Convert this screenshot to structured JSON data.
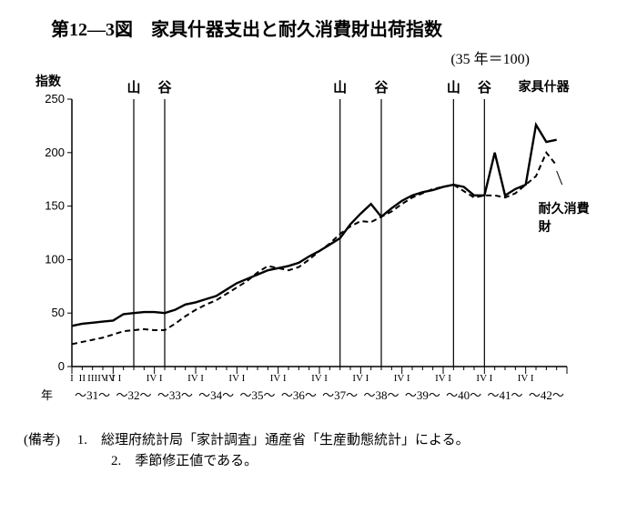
{
  "title": "第12—3図　家具什器支出と耐久消費財出荷指数",
  "subtitle": "(35 年＝100)",
  "y_axis_title": "指数",
  "year_label_prefix": "年",
  "chart": {
    "type": "line",
    "background_color": "#ffffff",
    "stroke_color": "#000000",
    "ylim": [
      0,
      250
    ],
    "ytick_step": 50,
    "yticks": [
      0,
      50,
      100,
      150,
      200,
      250
    ],
    "xlim_quarters": [
      0,
      48
    ],
    "years": [
      "31",
      "32",
      "33",
      "34",
      "35",
      "36",
      "37",
      "38",
      "39",
      "40",
      "41",
      "42"
    ],
    "quarter_ticks_first_year": [
      "I",
      "II",
      "III",
      "IV",
      "I"
    ],
    "quarter_tick_label": "IV I",
    "peak_label": "山",
    "trough_label": "谷",
    "vertical_lines_q": [
      6,
      9,
      26,
      30,
      37,
      40
    ],
    "vertical_line_labels": [
      "山",
      "谷",
      "山",
      "谷",
      "山",
      "谷"
    ],
    "series": [
      {
        "name": "家具什器",
        "label": "家具什器",
        "color": "#000000",
        "line_width": 2.4,
        "dash": "none",
        "data": [
          [
            0,
            38
          ],
          [
            1,
            40
          ],
          [
            2,
            41
          ],
          [
            3,
            42
          ],
          [
            4,
            43
          ],
          [
            5,
            49
          ],
          [
            6,
            50
          ],
          [
            7,
            51
          ],
          [
            8,
            51
          ],
          [
            9,
            50
          ],
          [
            10,
            53
          ],
          [
            11,
            58
          ],
          [
            12,
            60
          ],
          [
            13,
            63
          ],
          [
            14,
            66
          ],
          [
            15,
            72
          ],
          [
            16,
            78
          ],
          [
            17,
            82
          ],
          [
            18,
            86
          ],
          [
            19,
            90
          ],
          [
            20,
            92
          ],
          [
            21,
            94
          ],
          [
            22,
            97
          ],
          [
            23,
            103
          ],
          [
            24,
            108
          ],
          [
            25,
            114
          ],
          [
            26,
            120
          ],
          [
            27,
            133
          ],
          [
            28,
            143
          ],
          [
            29,
            152
          ],
          [
            30,
            140
          ],
          [
            31,
            148
          ],
          [
            32,
            155
          ],
          [
            33,
            160
          ],
          [
            34,
            163
          ],
          [
            35,
            165
          ],
          [
            36,
            168
          ],
          [
            37,
            170
          ],
          [
            38,
            168
          ],
          [
            39,
            160
          ],
          [
            40,
            160
          ],
          [
            41,
            200
          ],
          [
            42,
            160
          ],
          [
            43,
            166
          ],
          [
            44,
            170
          ],
          [
            45,
            226
          ],
          [
            46,
            210
          ],
          [
            47,
            212
          ]
        ]
      },
      {
        "name": "耐久消費財",
        "label": "耐久消費財",
        "color": "#000000",
        "line_width": 2.0,
        "dash": "6 4",
        "data": [
          [
            0,
            21
          ],
          [
            1,
            23
          ],
          [
            2,
            25
          ],
          [
            3,
            27
          ],
          [
            4,
            30
          ],
          [
            5,
            33
          ],
          [
            6,
            34
          ],
          [
            7,
            35
          ],
          [
            8,
            34
          ],
          [
            9,
            34
          ],
          [
            10,
            40
          ],
          [
            11,
            47
          ],
          [
            12,
            53
          ],
          [
            13,
            58
          ],
          [
            14,
            62
          ],
          [
            15,
            68
          ],
          [
            16,
            74
          ],
          [
            17,
            80
          ],
          [
            18,
            88
          ],
          [
            19,
            94
          ],
          [
            20,
            92
          ],
          [
            21,
            90
          ],
          [
            22,
            93
          ],
          [
            23,
            100
          ],
          [
            24,
            108
          ],
          [
            25,
            115
          ],
          [
            26,
            124
          ],
          [
            27,
            131
          ],
          [
            28,
            136
          ],
          [
            29,
            135
          ],
          [
            30,
            140
          ],
          [
            31,
            145
          ],
          [
            32,
            152
          ],
          [
            33,
            158
          ],
          [
            34,
            162
          ],
          [
            35,
            166
          ],
          [
            36,
            168
          ],
          [
            37,
            170
          ],
          [
            38,
            164
          ],
          [
            39,
            158
          ],
          [
            40,
            160
          ],
          [
            41,
            160
          ],
          [
            42,
            158
          ],
          [
            43,
            162
          ],
          [
            44,
            170
          ],
          [
            45,
            178
          ],
          [
            46,
            200
          ],
          [
            47,
            188
          ]
        ]
      }
    ]
  },
  "notes_label": "(備考)",
  "notes": [
    "総理府統計局「家計調査」通産省「生産動態統計」による。",
    "季節修正値である。"
  ]
}
